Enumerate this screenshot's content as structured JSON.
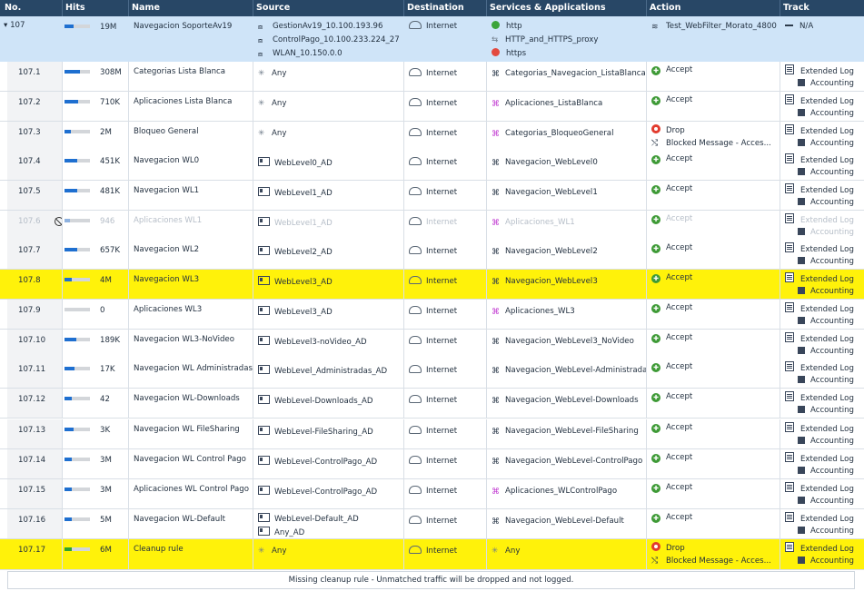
{
  "columns": {
    "no": "No.",
    "hits": "Hits",
    "name": "Name",
    "source": "Source",
    "destination": "Destination",
    "services": "Services & Applications",
    "action": "Action",
    "track": "Track"
  },
  "section": {
    "no": "107",
    "expander": "▾",
    "hits": "19M",
    "hits_fraction": 0.35,
    "name": "Navegacion SoporteAv19",
    "sources": [
      "GestionAv19_10.100.193.96",
      "ControlPago_10.100.233.224_27",
      "WLAN_10.150.0.0"
    ],
    "destination": "Internet",
    "services": [
      {
        "label": "http",
        "icon": "green-circle-icon"
      },
      {
        "label": "HTTP_and_HTTPS_proxy",
        "icon": "proxy-icon"
      },
      {
        "label": "https",
        "icon": "red-circle-icon"
      }
    ],
    "action": "Test_WebFilter_Morato_4800",
    "track": "N/A"
  },
  "rules": [
    {
      "no": "107.1",
      "hits": "308M",
      "hits_fraction": 0.6,
      "name": "Categorias Lista Blanca",
      "source": [
        "Any"
      ],
      "source_icon": "any",
      "destination": "Internet",
      "service": "Categorias_Navegacion_ListaBlanca",
      "service_icon": "category",
      "action": "Accept",
      "track": [
        "Extended Log",
        "Accounting"
      ]
    },
    {
      "no": "107.2",
      "hits": "710K",
      "hits_fraction": 0.55,
      "name": "Aplicaciones Lista Blanca",
      "source": [
        "Any"
      ],
      "source_icon": "any",
      "destination": "Internet",
      "service": "Aplicaciones_ListaBlanca",
      "service_icon": "app",
      "action": "Accept",
      "track": [
        "Extended Log",
        "Accounting"
      ]
    },
    {
      "no": "107.3",
      "hits": "2M",
      "hits_fraction": 0.25,
      "name": "Bloqueo General",
      "source": [
        "Any"
      ],
      "source_icon": "any",
      "destination": "Internet",
      "service": "Categorias_BloqueoGeneral",
      "service_icon": "app",
      "action": "Drop",
      "action_extra": "Blocked Message - Acces...",
      "track": [
        "Extended Log",
        "Accounting"
      ]
    },
    {
      "no": "107.4",
      "hits": "451K",
      "hits_fraction": 0.5,
      "name": "Navegacion WL0",
      "source": [
        "WebLevel0_AD"
      ],
      "source_icon": "user",
      "destination": "Internet",
      "service": "Navegacion_WebLevel0",
      "service_icon": "category",
      "action": "Accept",
      "track": [
        "Extended Log",
        "Accounting"
      ]
    },
    {
      "no": "107.5",
      "hits": "481K",
      "hits_fraction": 0.5,
      "name": "Navegacion WL1",
      "source": [
        "WebLevel1_AD"
      ],
      "source_icon": "user",
      "destination": "Internet",
      "service": "Navegacion_WebLevel1",
      "service_icon": "category",
      "action": "Accept",
      "track": [
        "Extended Log",
        "Accounting"
      ]
    },
    {
      "no": "107.6",
      "hits": "946",
      "hits_fraction": 0.2,
      "name": "Aplicaciones WL1",
      "source": [
        "WebLevel1_AD"
      ],
      "source_icon": "user",
      "destination": "Internet",
      "service": "Aplicaciones_WL1",
      "service_icon": "app",
      "action": "Accept",
      "track": [
        "Extended Log",
        "Accounting"
      ],
      "disabled": true
    },
    {
      "no": "107.7",
      "hits": "657K",
      "hits_fraction": 0.5,
      "name": "Navegacion WL2",
      "source": [
        "WebLevel2_AD"
      ],
      "source_icon": "user",
      "destination": "Internet",
      "service": "Navegacion_WebLevel2",
      "service_icon": "category",
      "action": "Accept",
      "track": [
        "Extended Log",
        "Accounting"
      ]
    },
    {
      "no": "107.8",
      "hits": "4M",
      "hits_fraction": 0.3,
      "name": "Navegacion WL3",
      "source": [
        "WebLevel3_AD"
      ],
      "source_icon": "user",
      "destination": "Internet",
      "service": "Navegacion_WebLevel3",
      "service_icon": "category",
      "action": "Accept",
      "track": [
        "Extended Log",
        "Accounting"
      ],
      "highlight": true
    },
    {
      "no": "107.9",
      "hits": "0",
      "hits_fraction": 0.0,
      "name": "Aplicaciones WL3",
      "source": [
        "WebLevel3_AD"
      ],
      "source_icon": "user",
      "destination": "Internet",
      "service": "Aplicaciones_WL3",
      "service_icon": "app",
      "action": "Accept",
      "track": [
        "Extended Log",
        "Accounting"
      ]
    },
    {
      "no": "107.10",
      "hits": "189K",
      "hits_fraction": 0.45,
      "name": "Navegacion WL3-NoVideo",
      "source": [
        "WebLevel3-noVideo_AD"
      ],
      "source_icon": "user",
      "destination": "Internet",
      "service": "Navegacion_WebLevel3_NoVideo",
      "service_icon": "category",
      "action": "Accept",
      "track": [
        "Extended Log",
        "Accounting"
      ]
    },
    {
      "no": "107.11",
      "hits": "17K",
      "hits_fraction": 0.4,
      "name": "Navegacion WL Administradas",
      "source": [
        "WebLevel_Administradas_AD"
      ],
      "source_icon": "user",
      "destination": "Internet",
      "service": "Navegacion_WebLevel-Administradas",
      "service_icon": "category",
      "action": "Accept",
      "track": [
        "Extended Log",
        "Accounting"
      ]
    },
    {
      "no": "107.12",
      "hits": "42",
      "hits_fraction": 0.3,
      "name": "Navegacion WL-Downloads",
      "source": [
        "WebLevel-Downloads_AD"
      ],
      "source_icon": "user",
      "destination": "Internet",
      "service": "Navegacion_WebLevel-Downloads",
      "service_icon": "category",
      "action": "Accept",
      "track": [
        "Extended Log",
        "Accounting"
      ]
    },
    {
      "no": "107.13",
      "hits": "3K",
      "hits_fraction": 0.35,
      "name": "Navegacion WL FileSharing",
      "source": [
        "WebLevel-FileSharing_AD"
      ],
      "source_icon": "user",
      "destination": "Internet",
      "service": "Navegacion_WebLevel-FileSharing",
      "service_icon": "category",
      "action": "Accept",
      "track": [
        "Extended Log",
        "Accounting"
      ]
    },
    {
      "no": "107.14",
      "hits": "3M",
      "hits_fraction": 0.3,
      "name": "Navegacion WL Control Pago",
      "source": [
        "WebLevel-ControlPago_AD"
      ],
      "source_icon": "user",
      "destination": "Internet",
      "service": "Navegacion_WebLevel-ControlPago",
      "service_icon": "category",
      "action": "Accept",
      "track": [
        "Extended Log",
        "Accounting"
      ]
    },
    {
      "no": "107.15",
      "hits": "3M",
      "hits_fraction": 0.3,
      "name": "Aplicaciones WL Control Pago",
      "source": [
        "WebLevel-ControlPago_AD"
      ],
      "source_icon": "user",
      "destination": "Internet",
      "service": "Aplicaciones_WLControlPago",
      "service_icon": "app",
      "action": "Accept",
      "track": [
        "Extended Log",
        "Accounting"
      ]
    },
    {
      "no": "107.16",
      "hits": "5M",
      "hits_fraction": 0.3,
      "name": "Navegacion WL-Default",
      "source": [
        "WebLevel-Default_AD",
        "Any_AD"
      ],
      "source_icon": "user",
      "destination": "Internet",
      "service": "Navegacion_WebLevel-Default",
      "service_icon": "category",
      "action": "Accept",
      "track": [
        "Extended Log",
        "Accounting"
      ]
    },
    {
      "no": "107.17",
      "hits": "6M",
      "hits_fraction": 0.3,
      "name": "Cleanup rule",
      "source": [
        "Any"
      ],
      "source_icon": "any",
      "destination": "Internet",
      "service": "Any",
      "service_icon": "any",
      "action": "Drop",
      "action_extra": "Blocked Message - Acces...",
      "track": [
        "Extended Log",
        "Accounting"
      ],
      "highlight": true,
      "bar_color": "green"
    }
  ],
  "footer": "Missing cleanup rule - Unmatched traffic will be dropped and not logged."
}
